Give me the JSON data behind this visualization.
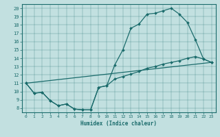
{
  "title": "",
  "xlabel": "Humidex (Indice chaleur)",
  "bg_color": "#c2e0e0",
  "line_color": "#1a6b6b",
  "xlim": [
    -0.5,
    23.5
  ],
  "ylim": [
    7.5,
    20.5
  ],
  "xticks": [
    0,
    1,
    2,
    3,
    4,
    5,
    6,
    7,
    8,
    9,
    10,
    11,
    12,
    13,
    14,
    15,
    16,
    17,
    18,
    19,
    20,
    21,
    22,
    23
  ],
  "yticks": [
    8,
    9,
    10,
    11,
    12,
    13,
    14,
    15,
    16,
    17,
    18,
    19,
    20
  ],
  "line1_x": [
    0,
    1,
    2,
    3,
    4,
    5,
    6,
    7,
    8,
    9,
    10,
    11,
    12,
    13,
    14,
    15,
    16,
    17,
    18,
    19,
    20,
    21,
    22,
    23
  ],
  "line1_y": [
    11.0,
    9.8,
    9.9,
    8.9,
    8.3,
    8.5,
    7.9,
    7.8,
    7.8,
    10.5,
    10.7,
    13.2,
    15.0,
    17.6,
    18.1,
    19.3,
    19.4,
    19.7,
    20.0,
    19.3,
    18.3,
    16.2,
    13.9,
    13.5
  ],
  "line2_x": [
    0,
    1,
    2,
    3,
    4,
    5,
    6,
    7,
    8,
    9,
    10,
    11,
    12,
    13,
    14,
    15,
    16,
    17,
    18,
    19,
    20,
    21,
    22,
    23
  ],
  "line2_y": [
    11.0,
    9.8,
    9.9,
    8.9,
    8.3,
    8.5,
    7.9,
    7.8,
    7.8,
    10.5,
    10.7,
    11.5,
    11.8,
    12.1,
    12.4,
    12.8,
    13.0,
    13.3,
    13.5,
    13.7,
    14.0,
    14.2,
    13.9,
    13.5
  ],
  "line3_x": [
    0,
    23
  ],
  "line3_y": [
    11.0,
    13.5
  ]
}
